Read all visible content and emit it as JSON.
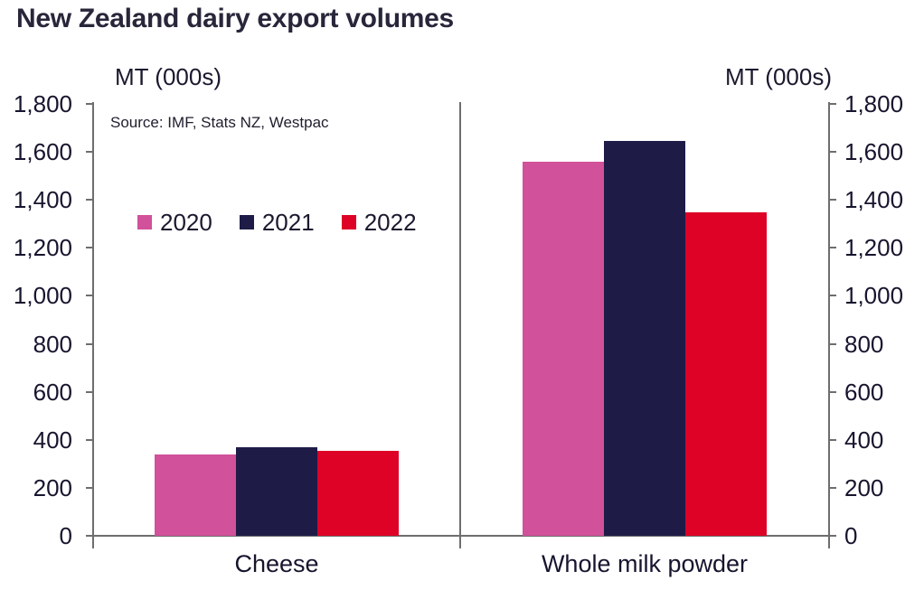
{
  "title": "New Zealand dairy export volumes",
  "source_note": "Source: IMF, Stats NZ, Westpac",
  "axis_unit_label_left": "MT (000s)",
  "axis_unit_label_right": "MT (000s)",
  "chart_data": {
    "type": "bar",
    "title": "New Zealand dairy export volumes",
    "ylabel": "MT (000s)",
    "xlabel": "",
    "ylim": [
      0,
      1800
    ],
    "ytick_step": 200,
    "ytick_labels": [
      "0",
      "200",
      "400",
      "600",
      "800",
      "1,000",
      "1,200",
      "1,400",
      "1,600",
      "1,800"
    ],
    "grid": false,
    "legend_position": "upper-left-inside",
    "source": "Source: IMF, Stats NZ, Westpac",
    "categories": [
      "Cheese",
      "Whole milk powder"
    ],
    "series": [
      {
        "name": "2020",
        "color": "#d1519a",
        "values": [
          340,
          1560
        ]
      },
      {
        "name": "2021",
        "color": "#1e1c47",
        "values": [
          370,
          1645
        ]
      },
      {
        "name": "2022",
        "color": "#dd0226",
        "values": [
          355,
          1350
        ]
      }
    ]
  },
  "colors": {
    "axis": "#6e6e6e",
    "text": "#16152e",
    "title": "#28263a",
    "background": "#ffffff"
  }
}
